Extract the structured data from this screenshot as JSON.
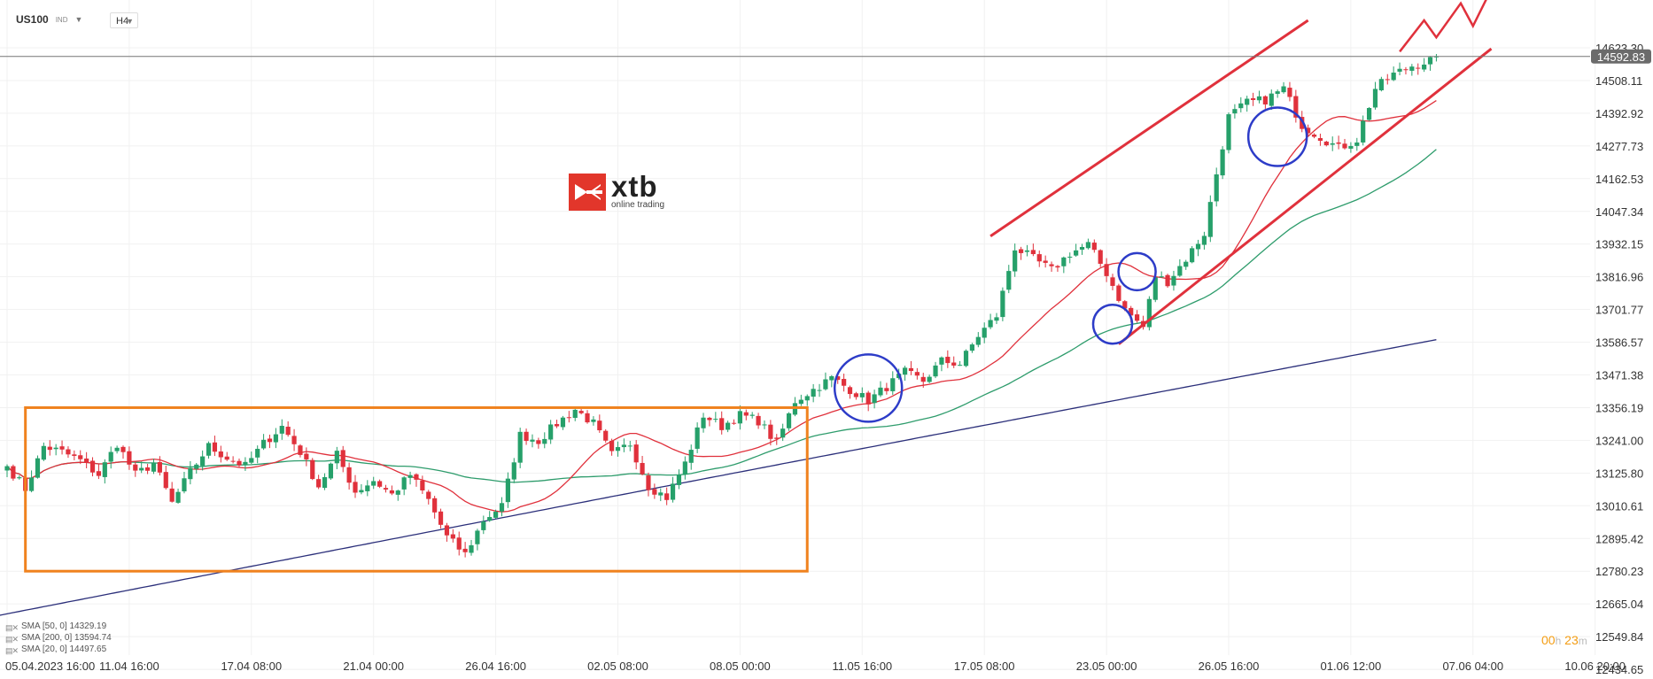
{
  "toolbar": {
    "symbol": "US100",
    "type": "IND",
    "timeframe": "H4"
  },
  "logo": {
    "brand": "xtb",
    "tagline": "online trading"
  },
  "price_tag": "14592.83",
  "timer": {
    "h": "00",
    "h_unit": "h",
    "m": "23",
    "m_unit": "m"
  },
  "legend": [
    {
      "icon": "indicator-icon",
      "label": "SMA  [50, 0]  14329.19"
    },
    {
      "icon": "indicator-icon",
      "label": "SMA  [200, 0]  13594.74"
    },
    {
      "icon": "indicator-icon",
      "label": "SMA  [20, 0]  14497.65"
    }
  ],
  "colors": {
    "up": "#26a06a",
    "down": "#e0313c",
    "sma20": "#e0313c",
    "sma50": "#2e9c6c",
    "sma200": "#2b2f7a",
    "channel": "#e0313c",
    "range_box": "#f0821e",
    "circle": "#2d3cc8",
    "price_line": "#777777"
  },
  "chart_data": {
    "type": "candlestick",
    "symbol": "US100",
    "timeframe": "H4",
    "ylim": [
      12434.65,
      14623.3
    ],
    "y_ticks": [
      14623.3,
      14508.11,
      14392.92,
      14277.73,
      14162.53,
      14047.34,
      13932.15,
      13816.96,
      13701.77,
      13586.57,
      13471.38,
      13356.19,
      13241.0,
      13125.8,
      13010.61,
      12895.42,
      12780.23,
      12665.04,
      12549.84,
      12434.65
    ],
    "x_ticks": [
      {
        "label": "05.04.2023  16:00",
        "i": 0
      },
      {
        "label": "11.04  16:00",
        "i": 20
      },
      {
        "label": "17.04  08:00",
        "i": 40
      },
      {
        "label": "21.04  00:00",
        "i": 60
      },
      {
        "label": "26.04  16:00",
        "i": 80
      },
      {
        "label": "02.05  08:00",
        "i": 100
      },
      {
        "label": "08.05  00:00",
        "i": 120
      },
      {
        "label": "11.05  16:00",
        "i": 140
      },
      {
        "label": "17.05  08:00",
        "i": 160
      },
      {
        "label": "23.05  00:00",
        "i": 180
      },
      {
        "label": "26.05  16:00",
        "i": 200
      },
      {
        "label": "01.06  12:00",
        "i": 220
      },
      {
        "label": "07.06  04:00",
        "i": 240
      },
      {
        "label": "10.06  20:00",
        "i": 260
      }
    ],
    "last_price": 14592.83,
    "waypoints": [
      [
        0,
        13150
      ],
      [
        3,
        13070
      ],
      [
        6,
        13220
      ],
      [
        9,
        13200
      ],
      [
        12,
        13170
      ],
      [
        15,
        13120
      ],
      [
        18,
        13230
      ],
      [
        21,
        13120
      ],
      [
        24,
        13160
      ],
      [
        27,
        13020
      ],
      [
        30,
        13130
      ],
      [
        33,
        13220
      ],
      [
        36,
        13180
      ],
      [
        39,
        13150
      ],
      [
        42,
        13230
      ],
      [
        45,
        13290
      ],
      [
        48,
        13200
      ],
      [
        51,
        13080
      ],
      [
        54,
        13190
      ],
      [
        57,
        13060
      ],
      [
        60,
        13100
      ],
      [
        63,
        13050
      ],
      [
        66,
        13120
      ],
      [
        69,
        13030
      ],
      [
        72,
        12900
      ],
      [
        75,
        12840
      ],
      [
        78,
        12960
      ],
      [
        81,
        13010
      ],
      [
        84,
        13260
      ],
      [
        87,
        13240
      ],
      [
        90,
        13300
      ],
      [
        93,
        13350
      ],
      [
        96,
        13300
      ],
      [
        99,
        13190
      ],
      [
        102,
        13230
      ],
      [
        105,
        13080
      ],
      [
        108,
        13040
      ],
      [
        111,
        13160
      ],
      [
        114,
        13330
      ],
      [
        117,
        13290
      ],
      [
        120,
        13330
      ],
      [
        123,
        13310
      ],
      [
        126,
        13230
      ],
      [
        129,
        13380
      ],
      [
        132,
        13420
      ],
      [
        135,
        13460
      ],
      [
        138,
        13420
      ],
      [
        141,
        13380
      ],
      [
        144,
        13430
      ],
      [
        147,
        13480
      ],
      [
        150,
        13450
      ],
      [
        153,
        13520
      ],
      [
        156,
        13510
      ],
      [
        159,
        13610
      ],
      [
        162,
        13680
      ],
      [
        165,
        13920
      ],
      [
        168,
        13880
      ],
      [
        171,
        13840
      ],
      [
        174,
        13900
      ],
      [
        177,
        13930
      ],
      [
        180,
        13830
      ],
      [
        183,
        13700
      ],
      [
        186,
        13640
      ],
      [
        188,
        13820
      ],
      [
        190,
        13800
      ],
      [
        193,
        13880
      ],
      [
        196,
        13970
      ],
      [
        198,
        14180
      ],
      [
        200,
        14380
      ],
      [
        203,
        14430
      ],
      [
        206,
        14440
      ],
      [
        209,
        14480
      ],
      [
        212,
        14350
      ],
      [
        215,
        14310
      ],
      [
        218,
        14270
      ],
      [
        221,
        14300
      ],
      [
        224,
        14480
      ],
      [
        227,
        14530
      ],
      [
        230,
        14560
      ],
      [
        233,
        14580
      ],
      [
        234,
        14592.83
      ]
    ],
    "sma": [
      {
        "name": "SMA  [50, 0]",
        "period": 50,
        "value": 14329.19
      },
      {
        "name": "SMA  [200, 0]",
        "period": 200,
        "value": 13594.74
      },
      {
        "name": "SMA  [20, 0]",
        "period": 20,
        "value": 14497.65
      }
    ],
    "annotations": {
      "range_box": {
        "i_start": 3,
        "i_end": 131,
        "price_high": 13356.19,
        "price_low": 12780.23
      },
      "channel_upper": [
        [
          161,
          13960
        ],
        [
          213,
          14720
        ]
      ],
      "channel_lower": [
        [
          182,
          13580
        ],
        [
          243,
          14620
        ]
      ],
      "circles": [
        {
          "i": 141,
          "price": 13425,
          "r_px": 38
        },
        {
          "i": 185,
          "price": 13835,
          "r_px": 21
        },
        {
          "i": 181,
          "price": 13650,
          "r_px": 22
        },
        {
          "i": 208,
          "price": 14310,
          "r_px": 33
        }
      ],
      "zigzag": [
        [
          228,
          14610
        ],
        [
          232,
          14720
        ],
        [
          234,
          14660
        ],
        [
          238,
          14780
        ],
        [
          240,
          14700
        ],
        [
          243,
          14830
        ]
      ]
    }
  }
}
